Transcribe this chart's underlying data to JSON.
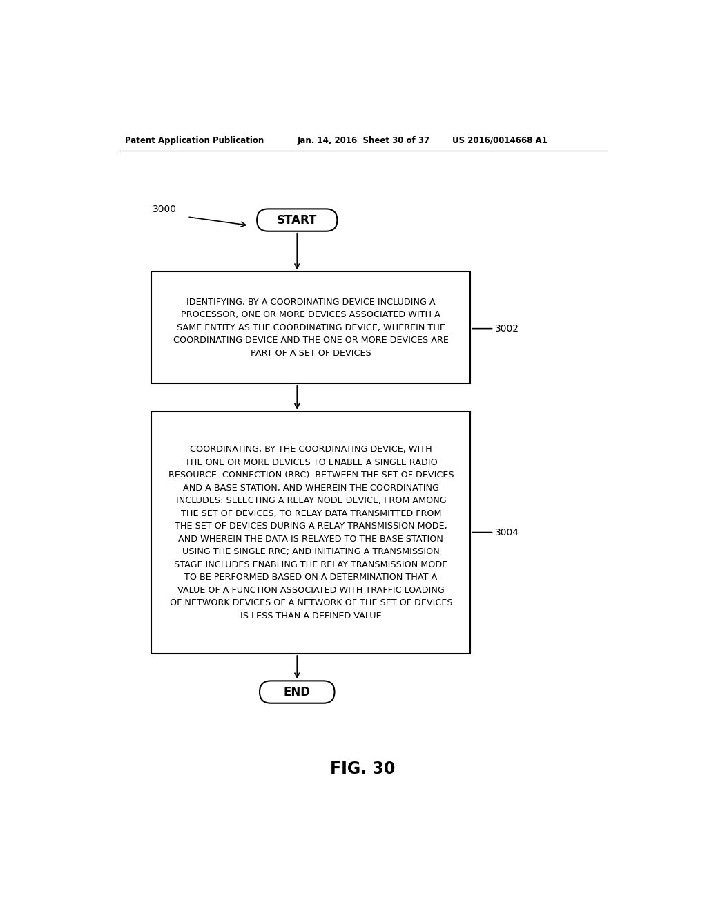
{
  "bg_color": "#ffffff",
  "header_left": "Patent Application Publication",
  "header_mid": "Jan. 14, 2016  Sheet 30 of 37",
  "header_right": "US 2016/0014668 A1",
  "fig_label": "FIG. 30",
  "label_3000": "3000",
  "label_3002": "3002",
  "label_3004": "3004",
  "start_text": "START",
  "end_text": "END",
  "box1_text": "IDENTIFYING, BY A COORDINATING DEVICE INCLUDING A\nPROCESSOR, ONE OR MORE DEVICES ASSOCIATED WITH A\nSAME ENTITY AS THE COORDINATING DEVICE, WHEREIN THE\nCOORDINATING DEVICE AND THE ONE OR MORE DEVICES ARE\nPART OF A SET OF DEVICES",
  "box2_text": "COORDINATING, BY THE COORDINATING DEVICE, WITH\nTHE ONE OR MORE DEVICES TO ENABLE A SINGLE RADIO\nRESOURCE  CONNECTION (RRC)  BETWEEN THE SET OF DEVICES\nAND A BASE STATION, AND WHEREIN THE COORDINATING\nINCLUDES: SELECTING A RELAY NODE DEVICE, FROM AMONG\nTHE SET OF DEVICES, TO RELAY DATA TRANSMITTED FROM\nTHE SET OF DEVICES DURING A RELAY TRANSMISSION MODE,\nAND WHEREIN THE DATA IS RELAYED TO THE BASE STATION\nUSING THE SINGLE RRC; AND INITIATING A TRANSMISSION\nSTAGE INCLUDES ENABLING THE RELAY TRANSMISSION MODE\nTO BE PERFORMED BASED ON A DETERMINATION THAT A\nVALUE OF A FUNCTION ASSOCIATED WITH TRAFFIC LOADING\nOF NETWORK DEVICES OF A NETWORK OF THE SET OF DEVICES\nIS LESS THAN A DEFINED VALUE",
  "text_color": "#000000",
  "box_edge_color": "#000000",
  "box_fill_color": "#ffffff",
  "font_family": "DejaVu Sans"
}
